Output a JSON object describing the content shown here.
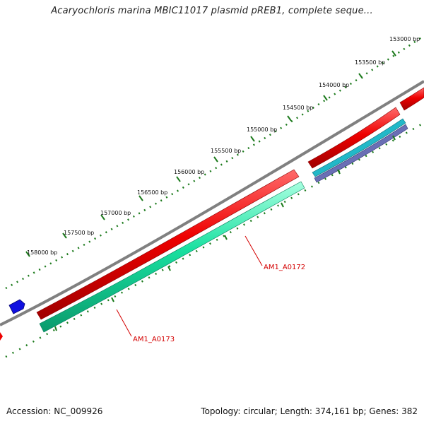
{
  "title": "Acaryochloris marina MBIC11017 plasmid pREB1, complete seque...",
  "accession": "Accession: NC_009926",
  "summary": "Topology: circular; Length: 374,161 bp; Genes: 382",
  "colors": {
    "backbone": "#808080",
    "forward_gene": "#ee0000",
    "reverse_gene": "#19e0a0",
    "other_gene": "#4060c0",
    "ticks": "#1c7a1c",
    "label": "#d40000",
    "marker": "#1010e0"
  },
  "scale_labels": [
    "153000 bp",
    "153500 bp",
    "154000 bp",
    "154500 bp",
    "155000 bp",
    "155500 bp",
    "156000 bp",
    "156500 bp",
    "157000 bp",
    "157500 bp",
    "158000 bp"
  ],
  "gene_labels": [
    "AM1_A0172",
    "AM1_A0173"
  ]
}
